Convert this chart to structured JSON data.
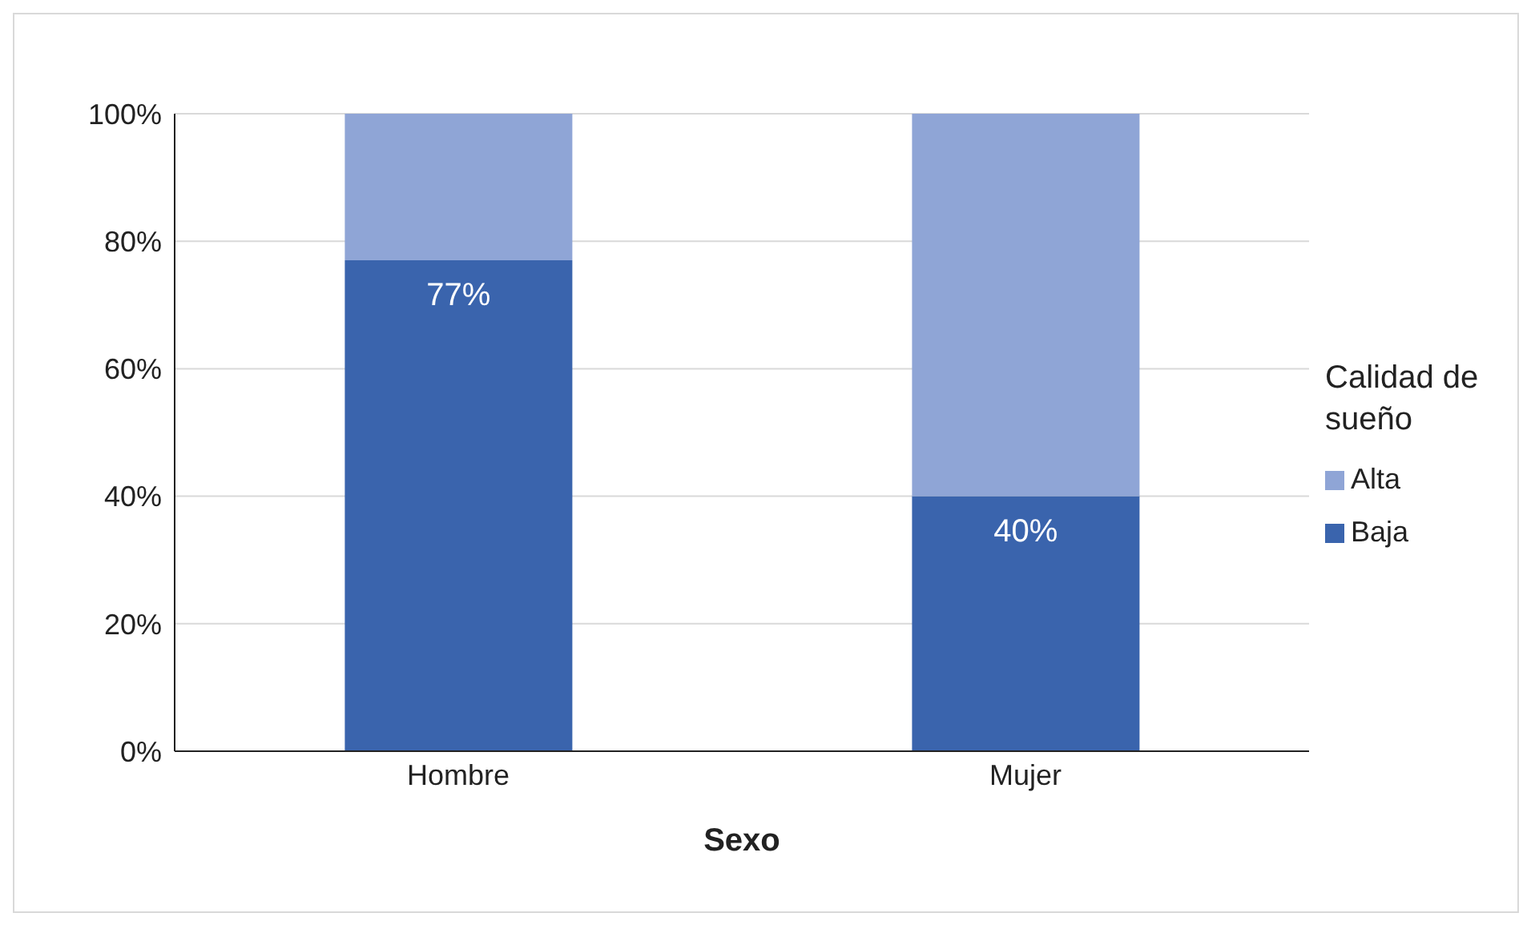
{
  "chart_data": {
    "type": "bar",
    "stacked": true,
    "categories": [
      "Hombre",
      "Mujer"
    ],
    "xlabel": "Sexo",
    "legend_title": "Calidad de sueño",
    "legend": "right",
    "grid": "y",
    "ylim": [
      0,
      100
    ],
    "yticks": [
      {
        "value": 0,
        "label": "0%"
      },
      {
        "value": 20,
        "label": "20%"
      },
      {
        "value": 40,
        "label": "40%"
      },
      {
        "value": 60,
        "label": "60%"
      },
      {
        "value": 80,
        "label": "80%"
      },
      {
        "value": 100,
        "label": "100%"
      }
    ],
    "series": [
      {
        "name": "Baja",
        "color": "#3a64ad",
        "values": [
          77,
          40
        ],
        "value_labels": [
          "77%",
          "40%"
        ]
      },
      {
        "name": "Alta",
        "color": "#8fa5d6",
        "values": [
          23,
          60
        ]
      }
    ]
  }
}
